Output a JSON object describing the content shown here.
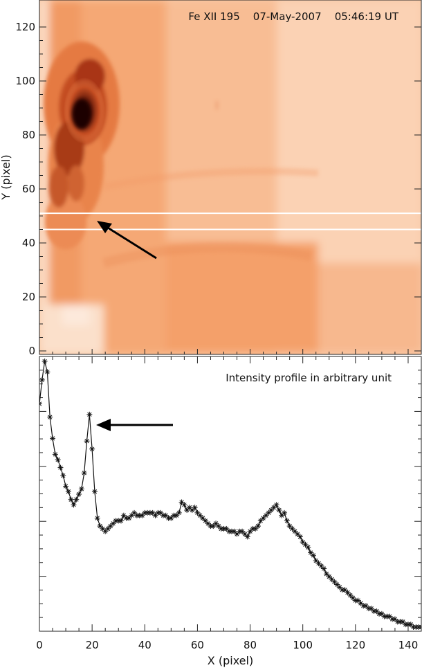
{
  "panels": {
    "image": {
      "title": "Fe XII 195    07-May-2007    05:46:19 UT",
      "ylabel": "Y (pixel)",
      "yticks": [
        "0",
        "20",
        "40",
        "60",
        "80",
        "100",
        "120"
      ],
      "ylim": [
        0,
        130
      ],
      "xlim": [
        0,
        145
      ],
      "slit_rows": [
        45,
        51
      ],
      "colormap": [
        "#ffffff",
        "#fbd9c0",
        "#f7b488",
        "#ef8a52",
        "#d45a2a",
        "#8a2410",
        "#2a0500"
      ]
    },
    "profile": {
      "title": "Intensity profile in arbitrary unit",
      "xlabel": "X (pixel)",
      "xticks": [
        "0",
        "20",
        "40",
        "60",
        "80",
        "100",
        "120",
        "140"
      ],
      "xlim": [
        0,
        145
      ]
    }
  },
  "chart_data": [
    {
      "type": "heatmap",
      "title": "Fe XII 195    07-May-2007    05:46:19 UT",
      "ylabel": "Y (pixel)",
      "xlim": [
        0,
        145
      ],
      "ylim": [
        0,
        130
      ],
      "highlighted_rows": [
        45,
        51
      ],
      "annotation": "arrow pointing to slit region near x=20"
    },
    {
      "type": "line",
      "title": "Intensity profile in arbitrary unit",
      "xlabel": "X (pixel)",
      "xlim": [
        0,
        145
      ],
      "ylim": [
        0,
        1
      ],
      "x": [
        0,
        1,
        2,
        3,
        4,
        5,
        6,
        7,
        8,
        9,
        10,
        11,
        12,
        13,
        14,
        15,
        16,
        17,
        18,
        19,
        20,
        21,
        22,
        23,
        24,
        25,
        26,
        27,
        28,
        29,
        30,
        31,
        32,
        33,
        34,
        35,
        36,
        37,
        38,
        39,
        40,
        41,
        42,
        43,
        44,
        45,
        46,
        47,
        48,
        49,
        50,
        51,
        52,
        53,
        54,
        55,
        56,
        57,
        58,
        59,
        60,
        61,
        62,
        63,
        64,
        65,
        66,
        67,
        68,
        69,
        70,
        71,
        72,
        73,
        74,
        75,
        76,
        77,
        78,
        79,
        80,
        81,
        82,
        83,
        84,
        85,
        86,
        87,
        88,
        89,
        90,
        91,
        92,
        93,
        94,
        95,
        96,
        97,
        98,
        99,
        100,
        101,
        102,
        103,
        104,
        105,
        106,
        107,
        108,
        109,
        110,
        111,
        112,
        113,
        114,
        115,
        116,
        117,
        118,
        119,
        120,
        121,
        122,
        123,
        124,
        125,
        126,
        127,
        128,
        129,
        130,
        131,
        132,
        133,
        134,
        135,
        136,
        137,
        138,
        139,
        140,
        141,
        142,
        143,
        144,
        145
      ],
      "y": [
        0.84,
        0.93,
        1.0,
        0.96,
        0.79,
        0.71,
        0.65,
        0.63,
        0.6,
        0.57,
        0.53,
        0.51,
        0.48,
        0.46,
        0.48,
        0.5,
        0.52,
        0.58,
        0.7,
        0.8,
        0.67,
        0.51,
        0.41,
        0.38,
        0.37,
        0.36,
        0.37,
        0.38,
        0.39,
        0.4,
        0.4,
        0.4,
        0.42,
        0.41,
        0.41,
        0.42,
        0.43,
        0.42,
        0.42,
        0.42,
        0.43,
        0.43,
        0.43,
        0.43,
        0.42,
        0.43,
        0.43,
        0.42,
        0.42,
        0.41,
        0.41,
        0.42,
        0.42,
        0.43,
        0.47,
        0.46,
        0.44,
        0.45,
        0.44,
        0.45,
        0.43,
        0.42,
        0.41,
        0.4,
        0.39,
        0.38,
        0.38,
        0.39,
        0.38,
        0.37,
        0.37,
        0.37,
        0.36,
        0.36,
        0.36,
        0.35,
        0.36,
        0.36,
        0.35,
        0.34,
        0.36,
        0.37,
        0.37,
        0.38,
        0.4,
        0.41,
        0.42,
        0.43,
        0.44,
        0.45,
        0.46,
        0.44,
        0.42,
        0.43,
        0.4,
        0.38,
        0.37,
        0.36,
        0.35,
        0.34,
        0.32,
        0.31,
        0.3,
        0.28,
        0.27,
        0.25,
        0.24,
        0.23,
        0.22,
        0.2,
        0.19,
        0.18,
        0.17,
        0.16,
        0.15,
        0.14,
        0.14,
        0.13,
        0.12,
        0.11,
        0.1,
        0.1,
        0.09,
        0.08,
        0.08,
        0.07,
        0.07,
        0.06,
        0.06,
        0.05,
        0.05,
        0.04,
        0.04,
        0.04,
        0.03,
        0.03,
        0.02,
        0.02,
        0.02,
        0.01,
        0.01,
        0.01,
        0.0,
        0.0,
        0.0,
        0.0
      ],
      "annotation": "arrow pointing to secondary peak near x=19"
    }
  ]
}
